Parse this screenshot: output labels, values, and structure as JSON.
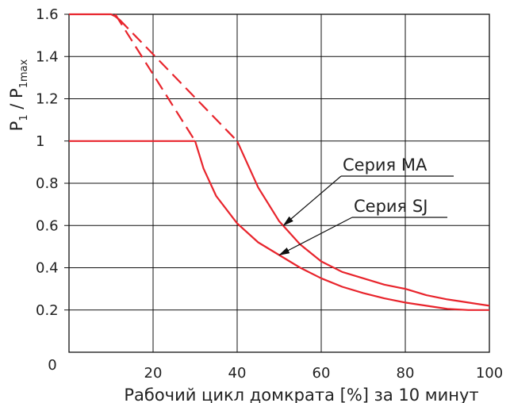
{
  "chart_data": {
    "type": "line",
    "xlabel": "Рабочий цикл домкрата [%] за 10 минут",
    "ylabel": {
      "main": "P",
      "sub1": "1",
      "sep": " / P",
      "sub2": "1max"
    },
    "xlim": [
      0,
      100
    ],
    "ylim": [
      0,
      1.6
    ],
    "x_ticks": [
      "0",
      "20",
      "40",
      "60",
      "80",
      "100"
    ],
    "y_ticks": [
      "0.2",
      "0.4",
      "0.6",
      "0.8",
      "1",
      "1.2",
      "1.4",
      "1.6"
    ],
    "grid": true,
    "line_color": "#e8242c",
    "series": [
      {
        "name": "Серия MA",
        "solid": [
          [
            0,
            1.6
          ],
          [
            10,
            1.6
          ],
          [
            11,
            1.59
          ],
          [
            12,
            1.575
          ]
        ],
        "dashed": [
          [
            12,
            1.575
          ],
          [
            40,
            1.0
          ]
        ],
        "solid_tail": [
          [
            40,
            1.0
          ],
          [
            45,
            0.78
          ],
          [
            50,
            0.62
          ],
          [
            55,
            0.51
          ],
          [
            60,
            0.43
          ],
          [
            65,
            0.38
          ],
          [
            70,
            0.35
          ],
          [
            75,
            0.32
          ],
          [
            80,
            0.3
          ],
          [
            85,
            0.27
          ],
          [
            90,
            0.25
          ],
          [
            95,
            0.235
          ],
          [
            100,
            0.22
          ]
        ]
      },
      {
        "name": "Серия SJ",
        "solid": [
          [
            0,
            1.0
          ],
          [
            30,
            1.0
          ]
        ],
        "dashed": [
          [
            11,
            1.6
          ],
          [
            30,
            1.0
          ]
        ],
        "solid_tail": [
          [
            30,
            1.0
          ],
          [
            32,
            0.87
          ],
          [
            35,
            0.74
          ],
          [
            40,
            0.61
          ],
          [
            45,
            0.52
          ],
          [
            50,
            0.46
          ],
          [
            55,
            0.4
          ],
          [
            60,
            0.35
          ],
          [
            65,
            0.31
          ],
          [
            70,
            0.28
          ],
          [
            75,
            0.255
          ],
          [
            80,
            0.235
          ],
          [
            85,
            0.22
          ],
          [
            90,
            0.205
          ],
          [
            95,
            0.2
          ],
          [
            100,
            0.2
          ]
        ]
      }
    ],
    "annotations": [
      {
        "text": "Серия MA",
        "series": "Серия MA",
        "arrow_to": [
          51,
          0.6
        ]
      },
      {
        "text": "Серия SJ",
        "series": "Серия SJ",
        "arrow_to": [
          50,
          0.46
        ]
      }
    ]
  }
}
